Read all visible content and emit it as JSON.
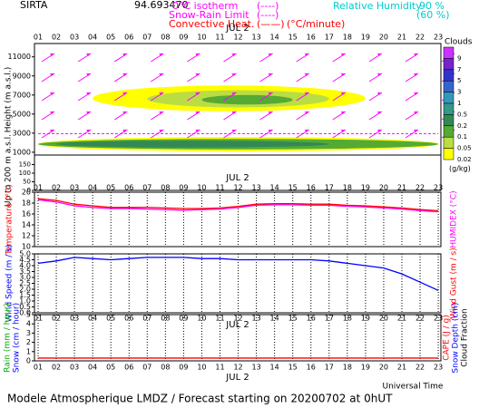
{
  "header": {
    "station": "SIRTA",
    "code": "94.693470",
    "isotherm": "0°C isotherm",
    "isotherm_style": "(----)",
    "snow_rain": "Snow-Rain Limit",
    "snow_rain_style": "(----)",
    "convective": "Convective Heat.",
    "convective_style": "(——)",
    "convective_unit": "(°C/minute)",
    "rh": "Relative Humidity",
    "rh_90": "90 %",
    "rh_60": "(60 %)"
  },
  "footer": "Modele Atmospherique LMDZ / Forecast starting on 20200702 at 0hUT",
  "chart_data": [
    {
      "type": "cloud-section",
      "y_label": "Height (m a.s.l.)",
      "y_label_low": "Up to 200 m a.s.l.",
      "date": "JUL 2",
      "categories": [
        "01",
        "02",
        "03",
        "04",
        "05",
        "06",
        "07",
        "08",
        "09",
        "10",
        "11",
        "12",
        "13",
        "14",
        "15",
        "16",
        "17",
        "18",
        "19",
        "20",
        "21",
        "22",
        "23"
      ],
      "ylim": [
        800,
        12400
      ],
      "yticks": [
        1000,
        3000,
        5000,
        7000,
        9000,
        11000
      ],
      "ylim_low": [
        0,
        200
      ],
      "yticks_low": [
        0,
        50,
        100,
        150
      ],
      "colorbar": {
        "title": "Clouds",
        "unit": "(g/kg)",
        "levels": [
          9,
          7,
          5,
          3,
          1,
          0.5,
          0.2,
          0.1,
          0.05,
          0.02
        ],
        "colors": [
          "#cc33ff",
          "#7722cc",
          "#3333cc",
          "#3366cc",
          "#3399bb",
          "#339988",
          "#338855",
          "#55aa33",
          "#bbdd44",
          "#ffff00"
        ]
      },
      "cloud_layers": [
        {
          "from": 3,
          "to": 18,
          "base": 5300,
          "top": 8000,
          "value": 0.02
        },
        {
          "from": 6,
          "to": 16,
          "base": 5700,
          "top": 7500,
          "value": 0.05
        },
        {
          "from": 9,
          "to": 14,
          "base": 6000,
          "top": 7000,
          "value": 0.1
        },
        {
          "from": 0,
          "to": 22,
          "base": 1100,
          "top": 2600,
          "value": 0.02
        },
        {
          "from": 0,
          "to": 22,
          "base": 1300,
          "top": 2400,
          "value": 0.1
        },
        {
          "from": 1,
          "to": 16,
          "base": 1500,
          "top": 2200,
          "value": 0.2
        }
      ],
      "isotherm": {
        "color": "#ff00ff",
        "values": [
          2950,
          2950,
          2950,
          2950,
          2950,
          2950,
          2950,
          2950,
          2950,
          2950,
          2950,
          2950,
          2950,
          2950,
          2950,
          2950,
          2950,
          2950,
          2950,
          2950,
          2950,
          2950,
          2950
        ]
      }
    },
    {
      "type": "line",
      "y_label": "Temperature (°C)",
      "y_label_color": "#ff0000",
      "y2_label": "HUMIDEX (°C)",
      "y2_label_color": "#ff00ff",
      "date": "JUL 2",
      "categories": [
        "01",
        "02",
        "03",
        "04",
        "05",
        "06",
        "07",
        "08",
        "09",
        "10",
        "11",
        "12",
        "13",
        "14",
        "15",
        "16",
        "17",
        "18",
        "19",
        "20",
        "21",
        "22",
        "23"
      ],
      "ylim": [
        10,
        20
      ],
      "yticks": [
        10,
        12,
        14,
        16,
        18,
        20
      ],
      "series": [
        {
          "color": "#ff00ff",
          "values": [
            18.6,
            18.2,
            17.5,
            17.2,
            17.0,
            17.0,
            16.9,
            16.8,
            16.7,
            16.8,
            16.9,
            17.2,
            17.6,
            17.7,
            17.7,
            17.6,
            17.6,
            17.4,
            17.3,
            17.1,
            16.9,
            16.6,
            16.4
          ]
        },
        {
          "color": "#ff0000",
          "values": [
            18.8,
            18.5,
            17.8,
            17.5,
            17.2,
            17.2,
            17.2,
            17.1,
            17.0,
            17.0,
            17.1,
            17.4,
            17.8,
            17.9,
            17.9,
            17.8,
            17.8,
            17.6,
            17.5,
            17.3,
            17.1,
            16.8,
            16.6
          ]
        }
      ]
    },
    {
      "type": "line",
      "y_label": "Wind Speed (m / s)",
      "y_label_color": "#0000ff",
      "y2_label": "Wind Gust (m / s)",
      "y2_label_color": "#ff0000",
      "date": "JUL 2",
      "categories": [
        "01",
        "02",
        "03",
        "04",
        "05",
        "06",
        "07",
        "08",
        "09",
        "10",
        "11",
        "12",
        "13",
        "14",
        "15",
        "16",
        "17",
        "18",
        "19",
        "20",
        "21",
        "22",
        "23"
      ],
      "ylim": [
        0,
        5
      ],
      "yticks": [
        {
          "value": 0,
          "label": "0.0"
        },
        {
          "value": 0.5,
          "label": "0.5"
        },
        {
          "value": 1,
          "label": "1.0"
        },
        {
          "value": 1.5,
          "label": "1.5"
        },
        {
          "value": 2,
          "label": "2.0"
        },
        {
          "value": 2.5,
          "label": "2.5"
        },
        {
          "value": 3,
          "label": "3.0"
        },
        {
          "value": 3.5,
          "label": "3.5"
        },
        {
          "value": 4,
          "label": "4.0"
        },
        {
          "value": 4.5,
          "label": "4.5"
        },
        {
          "value": 5,
          "label": "5.0"
        }
      ],
      "series": [
        {
          "color": "#0000ff",
          "values": [
            4.2,
            4.4,
            4.7,
            4.6,
            4.5,
            4.6,
            4.7,
            4.7,
            4.7,
            4.6,
            4.6,
            4.5,
            4.5,
            4.5,
            4.5,
            4.5,
            4.4,
            4.2,
            4.0,
            3.8,
            3.3,
            2.6,
            1.9
          ]
        }
      ]
    },
    {
      "type": "line",
      "date": "JUL 2",
      "x_label": "Universal Time",
      "y_labels": [
        {
          "text": "Rain (mm / hour)",
          "color": "#00aa00"
        },
        {
          "text": "Snow (cm / hour)",
          "color": "#0000ff"
        }
      ],
      "y2_labels": [
        {
          "text": "CAPE (J / g)",
          "color": "#ff0000"
        },
        {
          "text": "Snow Depth (cm)",
          "color": "#0000ff"
        },
        {
          "text": "Cloud Fraction",
          "color": "#000000"
        }
      ],
      "categories": [
        "01",
        "02",
        "03",
        "04",
        "05",
        "06",
        "07",
        "08",
        "09",
        "10",
        "11",
        "12",
        "13",
        "14",
        "15",
        "16",
        "17",
        "18",
        "19",
        "20",
        "21",
        "22",
        "23"
      ],
      "ylim": [
        0,
        5
      ],
      "yticks": [
        0,
        1,
        2,
        3,
        4,
        5
      ],
      "series": [
        {
          "color": "#ff0000",
          "values": [
            0.3,
            0.3,
            0.3,
            0.3,
            0.3,
            0.3,
            0.3,
            0.3,
            0.3,
            0.3,
            0.3,
            0.3,
            0.3,
            0.3,
            0.3,
            0.3,
            0.3,
            0.3,
            0.3,
            0.3,
            0.3,
            0.3,
            0.3
          ]
        }
      ]
    }
  ]
}
